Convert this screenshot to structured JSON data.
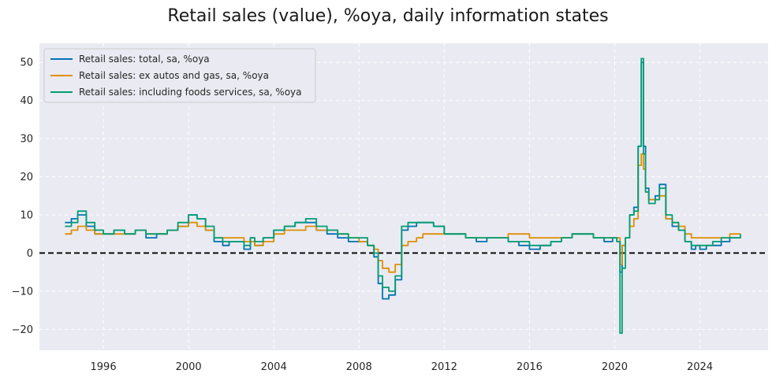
{
  "chart_data": {
    "type": "line",
    "title": "Retail sales (value), %oya, daily information states",
    "xlabel": "",
    "ylabel": "",
    "xlim": [
      1993.0,
      2027.2
    ],
    "ylim": [
      -25.5,
      55.0
    ],
    "x_ticks": [
      1996,
      2000,
      2004,
      2008,
      2012,
      2016,
      2020,
      2024
    ],
    "x_tick_labels": [
      "1996",
      "2000",
      "2004",
      "2008",
      "2012",
      "2016",
      "2020",
      "2024"
    ],
    "y_ticks": [
      -20,
      -10,
      0,
      10,
      20,
      30,
      40,
      50
    ],
    "y_tick_labels": [
      "−20",
      "−10",
      "0",
      "10",
      "20",
      "30",
      "40",
      "50"
    ],
    "grid": true,
    "legend_position": "top-left",
    "reference_line": {
      "y": 0,
      "style": "dashed",
      "color": "#000000"
    },
    "series": [
      {
        "name": "Retail sales: total, sa, %oya",
        "color": "#0173b2",
        "x": [
          1994.2,
          1994.5,
          1994.8,
          1995.2,
          1995.6,
          1996.0,
          1996.5,
          1997.0,
          1997.5,
          1998.0,
          1998.5,
          1999.0,
          1999.5,
          2000.0,
          2000.4,
          2000.8,
          2001.2,
          2001.6,
          2001.9,
          2002.2,
          2002.6,
          2002.9,
          2003.1,
          2003.5,
          2004.0,
          2004.5,
          2005.0,
          2005.5,
          2006.0,
          2006.5,
          2007.0,
          2007.5,
          2008.0,
          2008.4,
          2008.7,
          2008.9,
          2009.1,
          2009.4,
          2009.7,
          2010.0,
          2010.3,
          2010.7,
          2011.0,
          2011.5,
          2012.0,
          2012.5,
          2013.0,
          2013.5,
          2014.0,
          2014.5,
          2015.0,
          2015.5,
          2016.0,
          2016.5,
          2017.0,
          2017.5,
          2018.0,
          2018.5,
          2019.0,
          2019.5,
          2019.9,
          2020.1,
          2020.25,
          2020.35,
          2020.5,
          2020.7,
          2020.9,
          2021.1,
          2021.25,
          2021.35,
          2021.45,
          2021.6,
          2021.9,
          2022.1,
          2022.4,
          2022.7,
          2023.0,
          2023.3,
          2023.6,
          2023.8,
          2024.0,
          2024.3,
          2024.6,
          2025.0,
          2025.4,
          2025.9
        ],
        "y": [
          8,
          9,
          10,
          7,
          5,
          5,
          6,
          5,
          6,
          4,
          5,
          6,
          7,
          10,
          9,
          6,
          3,
          2,
          3,
          3,
          1,
          4,
          2,
          4,
          6,
          7,
          8,
          8,
          6,
          5,
          4,
          3,
          3,
          2,
          -1,
          -8,
          -12,
          -11,
          -7,
          6,
          7,
          8,
          8,
          7,
          5,
          5,
          4,
          3,
          4,
          4,
          3,
          2,
          1,
          2,
          3,
          4,
          5,
          5,
          4,
          3,
          4,
          3,
          -5,
          2,
          4,
          10,
          12,
          28,
          50,
          28,
          17,
          14,
          15,
          18,
          9,
          7,
          6,
          3,
          1,
          2,
          1,
          2,
          2,
          3,
          4,
          4
        ]
      },
      {
        "name": "Retail sales: ex autos and gas, sa, %oya",
        "color": "#de8f05",
        "x": [
          1994.2,
          1994.5,
          1994.8,
          1995.2,
          1995.6,
          1996.0,
          1996.5,
          1997.0,
          1997.5,
          1998.0,
          1998.5,
          1999.0,
          1999.5,
          2000.0,
          2000.4,
          2000.8,
          2001.2,
          2001.6,
          2001.9,
          2002.2,
          2002.6,
          2002.9,
          2003.1,
          2003.5,
          2004.0,
          2004.5,
          2005.0,
          2005.5,
          2006.0,
          2006.5,
          2007.0,
          2007.5,
          2008.0,
          2008.4,
          2008.7,
          2008.9,
          2009.1,
          2009.4,
          2009.7,
          2010.0,
          2010.3,
          2010.7,
          2011.0,
          2011.5,
          2012.0,
          2012.5,
          2013.0,
          2013.5,
          2014.0,
          2014.5,
          2015.0,
          2015.5,
          2016.0,
          2016.5,
          2017.0,
          2017.5,
          2018.0,
          2018.5,
          2019.0,
          2019.5,
          2019.9,
          2020.1,
          2020.25,
          2020.35,
          2020.5,
          2020.7,
          2020.9,
          2021.1,
          2021.25,
          2021.35,
          2021.45,
          2021.6,
          2021.9,
          2022.1,
          2022.4,
          2022.7,
          2023.0,
          2023.3,
          2023.6,
          2023.8,
          2024.0,
          2024.3,
          2024.6,
          2025.0,
          2025.4,
          2025.9
        ],
        "y": [
          5,
          6,
          7,
          6,
          5,
          5,
          5,
          5,
          6,
          5,
          5,
          6,
          7,
          8,
          7,
          6,
          4,
          4,
          4,
          4,
          3,
          3,
          2,
          3,
          5,
          6,
          6,
          7,
          6,
          6,
          5,
          4,
          3,
          2,
          1,
          -2,
          -4,
          -5,
          -3,
          2,
          3,
          4,
          5,
          5,
          5,
          5,
          4,
          4,
          4,
          4,
          5,
          5,
          4,
          4,
          4,
          4,
          5,
          5,
          4,
          4,
          4,
          4,
          -3,
          2,
          4,
          7,
          9,
          23,
          26,
          22,
          16,
          14,
          14,
          15,
          9,
          8,
          7,
          5,
          4,
          4,
          4,
          4,
          4,
          4,
          5,
          5
        ]
      },
      {
        "name": "Retail sales: including foods services, sa, %oya",
        "color": "#029e73",
        "x": [
          1994.2,
          1994.5,
          1994.8,
          1995.2,
          1995.6,
          1996.0,
          1996.5,
          1997.0,
          1997.5,
          1998.0,
          1998.5,
          1999.0,
          1999.5,
          2000.0,
          2000.4,
          2000.8,
          2001.2,
          2001.6,
          2001.9,
          2002.2,
          2002.6,
          2002.9,
          2003.1,
          2003.5,
          2004.0,
          2004.5,
          2005.0,
          2005.5,
          2006.0,
          2006.5,
          2007.0,
          2007.5,
          2008.0,
          2008.4,
          2008.7,
          2008.9,
          2009.1,
          2009.4,
          2009.7,
          2010.0,
          2010.3,
          2010.7,
          2011.0,
          2011.5,
          2012.0,
          2012.5,
          2013.0,
          2013.5,
          2014.0,
          2014.5,
          2015.0,
          2015.5,
          2016.0,
          2016.5,
          2017.0,
          2017.5,
          2018.0,
          2018.5,
          2019.0,
          2019.5,
          2019.9,
          2020.1,
          2020.25,
          2020.35,
          2020.5,
          2020.7,
          2020.9,
          2021.1,
          2021.25,
          2021.35,
          2021.45,
          2021.6,
          2021.9,
          2022.1,
          2022.4,
          2022.7,
          2023.0,
          2023.3,
          2023.6,
          2023.8,
          2024.0,
          2024.3,
          2024.6,
          2025.0,
          2025.4,
          2025.9
        ],
        "y": [
          7,
          8,
          11,
          8,
          6,
          5,
          6,
          5,
          6,
          5,
          5,
          6,
          8,
          10,
          9,
          7,
          4,
          3,
          3,
          3,
          2,
          4,
          3,
          4,
          6,
          7,
          8,
          9,
          7,
          6,
          5,
          4,
          4,
          2,
          0,
          -6,
          -9,
          -10,
          -6,
          7,
          8,
          8,
          8,
          7,
          5,
          5,
          4,
          4,
          4,
          4,
          3,
          3,
          2,
          2,
          3,
          4,
          5,
          5,
          4,
          4,
          4,
          3,
          -21,
          -4,
          4,
          10,
          11,
          28,
          51,
          26,
          16,
          13,
          14,
          17,
          10,
          8,
          6,
          3,
          2,
          2,
          2,
          2,
          3,
          4,
          4,
          5
        ]
      }
    ]
  }
}
